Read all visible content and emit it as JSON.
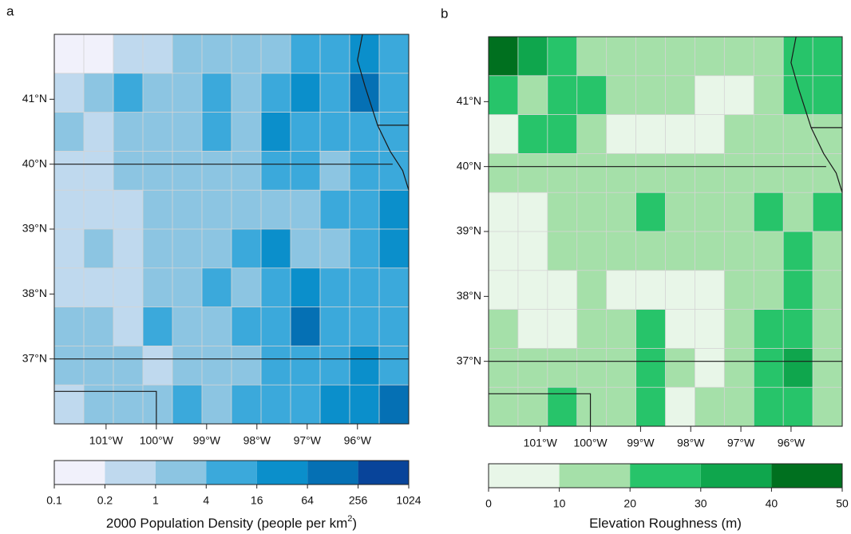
{
  "panels": [
    {
      "label": "a",
      "type": "map",
      "lonlim": [
        -102.03,
        -94.98
      ],
      "latlim": [
        36,
        42
      ],
      "lonticks": [
        {
          "value": -101,
          "label": "101°W"
        },
        {
          "value": -100,
          "label": "100°W"
        },
        {
          "value": -99,
          "label": "99°W"
        },
        {
          "value": -98,
          "label": "98°W"
        },
        {
          "value": -97,
          "label": "97°W"
        },
        {
          "value": -96,
          "label": "96°W"
        }
      ],
      "latticks": [
        {
          "value": 41,
          "label": "41°N"
        },
        {
          "value": 40,
          "label": "40°N"
        },
        {
          "value": 39,
          "label": "39°N"
        },
        {
          "value": 38,
          "label": "38°N"
        },
        {
          "value": 37,
          "label": "37°N"
        }
      ],
      "grid": [
        [
          0.15,
          0.15,
          0.5,
          0.5,
          2,
          2,
          2,
          2,
          8,
          8,
          30,
          8
        ],
        [
          0.5,
          2,
          8,
          2,
          2,
          8,
          2,
          8,
          30,
          8,
          100,
          8
        ],
        [
          2,
          0.5,
          2,
          2,
          2,
          8,
          2,
          30,
          8,
          8,
          8,
          8
        ],
        [
          0.5,
          0.5,
          2,
          2,
          2,
          2,
          2,
          8,
          8,
          2,
          8,
          8
        ],
        [
          0.5,
          0.5,
          0.5,
          2,
          2,
          2,
          2,
          2,
          2,
          8,
          8,
          30
        ],
        [
          0.5,
          2,
          0.5,
          2,
          2,
          2,
          8,
          30,
          2,
          2,
          8,
          30
        ],
        [
          0.5,
          0.5,
          0.5,
          2,
          2,
          8,
          2,
          8,
          30,
          8,
          8,
          8
        ],
        [
          2,
          2,
          0.5,
          8,
          2,
          2,
          8,
          8,
          100,
          8,
          8,
          8
        ],
        [
          2,
          2,
          2,
          0.5,
          2,
          2,
          2,
          8,
          8,
          8,
          30,
          8
        ],
        [
          0.5,
          2,
          2,
          2,
          8,
          2,
          8,
          8,
          8,
          30,
          30,
          100
        ]
      ],
      "colorbar": {
        "bounds": [
          0.1,
          0.2,
          1,
          4,
          16,
          64,
          256,
          1024
        ],
        "colors": [
          "#f1f1fb",
          "#bfd9ee",
          "#8cc5e2",
          "#3ba9db",
          "#0b8fcb",
          "#0570b4",
          "#08449a"
        ],
        "label": "2000 Population Density (people per km",
        "label_sup": "2",
        "label_end": ")"
      }
    },
    {
      "label": "b",
      "type": "map",
      "lonlim": [
        -102.03,
        -94.98
      ],
      "latlim": [
        36,
        42
      ],
      "lonticks": [
        {
          "value": -101,
          "label": "101°W"
        },
        {
          "value": -100,
          "label": "100°W"
        },
        {
          "value": -99,
          "label": "99°W"
        },
        {
          "value": -98,
          "label": "98°W"
        },
        {
          "value": -97,
          "label": "97°W"
        },
        {
          "value": -96,
          "label": "96°W"
        }
      ],
      "latticks": [
        {
          "value": 41,
          "label": "41°N"
        },
        {
          "value": 40,
          "label": "40°N"
        },
        {
          "value": 39,
          "label": "39°N"
        },
        {
          "value": 38,
          "label": "38°N"
        },
        {
          "value": 37,
          "label": "37°N"
        }
      ],
      "grid": [
        [
          45,
          35,
          25,
          15,
          15,
          15,
          15,
          15,
          15,
          15,
          25,
          25
        ],
        [
          25,
          15,
          25,
          25,
          15,
          15,
          15,
          5,
          5,
          15,
          25,
          25
        ],
        [
          5,
          25,
          25,
          15,
          5,
          5,
          5,
          5,
          15,
          15,
          15,
          15
        ],
        [
          15,
          15,
          15,
          15,
          15,
          15,
          15,
          15,
          15,
          15,
          15,
          15
        ],
        [
          5,
          5,
          15,
          15,
          15,
          25,
          15,
          15,
          15,
          25,
          15,
          25
        ],
        [
          5,
          5,
          15,
          15,
          15,
          15,
          15,
          15,
          15,
          15,
          25,
          15
        ],
        [
          5,
          5,
          5,
          15,
          5,
          5,
          5,
          5,
          15,
          15,
          25,
          15
        ],
        [
          15,
          5,
          5,
          15,
          15,
          25,
          5,
          5,
          15,
          25,
          25,
          15
        ],
        [
          15,
          15,
          15,
          15,
          15,
          25,
          15,
          5,
          15,
          25,
          35,
          15
        ],
        [
          15,
          15,
          25,
          15,
          15,
          25,
          5,
          15,
          15,
          25,
          25,
          15
        ]
      ],
      "colorbar": {
        "bounds": [
          0,
          10,
          20,
          30,
          40,
          50
        ],
        "colors": [
          "#e8f6e8",
          "#a5e0a9",
          "#27c46a",
          "#0fa64d",
          "#00701f"
        ],
        "label": "Elevation Roughness (m)"
      }
    }
  ]
}
